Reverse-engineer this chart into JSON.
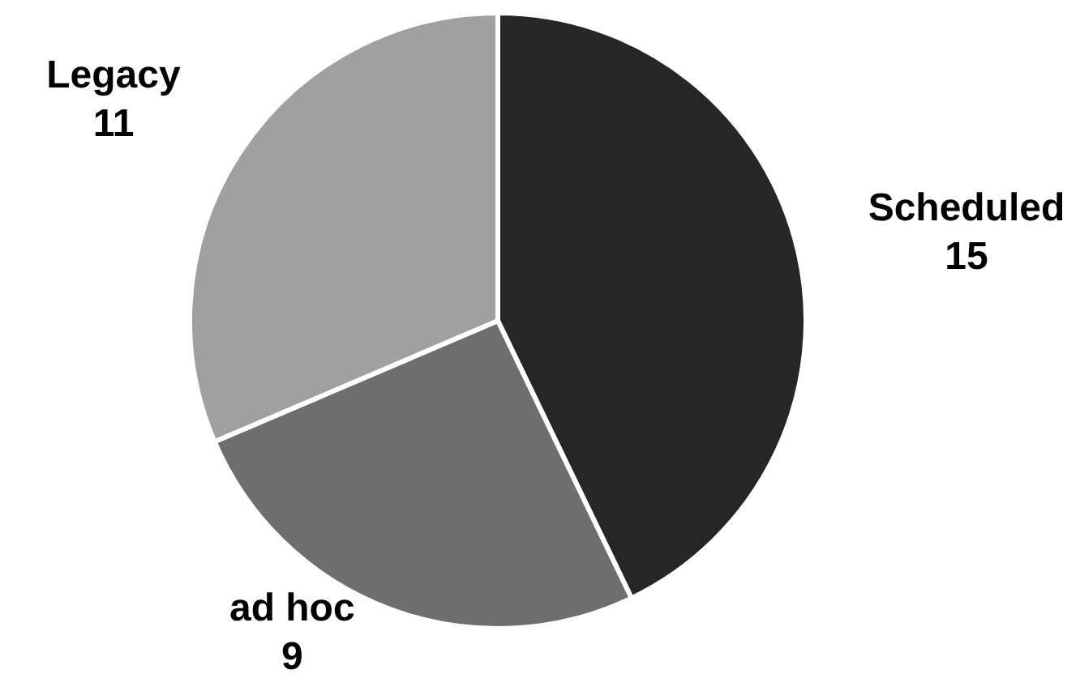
{
  "chart_data": {
    "type": "pie",
    "categories": [
      "Scheduled",
      "ad hoc",
      "Legacy"
    ],
    "values": [
      15,
      9,
      11
    ],
    "colors": [
      "#262626",
      "#6e6e6e",
      "#a0a0a0"
    ],
    "data_labels": true
  }
}
